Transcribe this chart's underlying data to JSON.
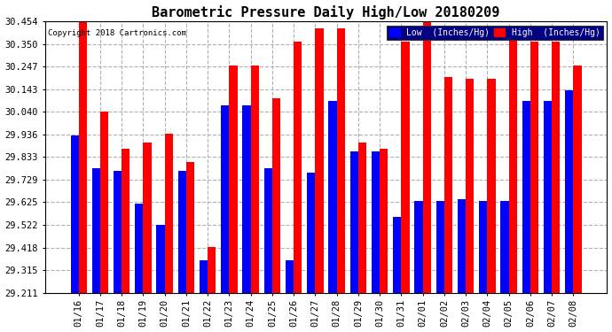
{
  "title": "Barometric Pressure Daily High/Low 20180209",
  "copyright": "Copyright 2018 Cartronics.com",
  "legend_low": "Low  (Inches/Hg)",
  "legend_high": "High  (Inches/Hg)",
  "dates": [
    "01/16",
    "01/17",
    "01/18",
    "01/19",
    "01/20",
    "01/21",
    "01/22",
    "01/23",
    "01/24",
    "01/25",
    "01/26",
    "01/27",
    "01/28",
    "01/29",
    "01/30",
    "01/31",
    "02/01",
    "02/02",
    "02/03",
    "02/04",
    "02/05",
    "02/06",
    "02/07",
    "02/08"
  ],
  "low": [
    29.93,
    29.78,
    29.77,
    29.62,
    29.52,
    29.77,
    29.36,
    30.07,
    30.07,
    29.78,
    29.36,
    29.76,
    30.09,
    29.86,
    29.86,
    29.56,
    29.63,
    29.63,
    29.64,
    29.63,
    29.63,
    30.09,
    30.09,
    30.14
  ],
  "high": [
    30.45,
    30.04,
    29.87,
    29.9,
    29.94,
    29.81,
    29.42,
    30.25,
    30.25,
    30.1,
    30.36,
    30.42,
    30.42,
    29.9,
    29.87,
    30.36,
    30.45,
    30.2,
    30.19,
    30.19,
    30.4,
    30.36,
    30.36,
    30.25
  ],
  "low_color": "#0000ff",
  "high_color": "#ff0000",
  "bg_color": "#ffffff",
  "plot_bg_color": "#ffffff",
  "grid_color": "#b0b0b0",
  "ymin": 29.211,
  "ymax": 30.454,
  "yticks": [
    29.211,
    29.315,
    29.418,
    29.522,
    29.625,
    29.729,
    29.833,
    29.936,
    30.04,
    30.143,
    30.247,
    30.35,
    30.454
  ],
  "title_fontsize": 11,
  "tick_fontsize": 7.5,
  "bar_width": 0.38
}
